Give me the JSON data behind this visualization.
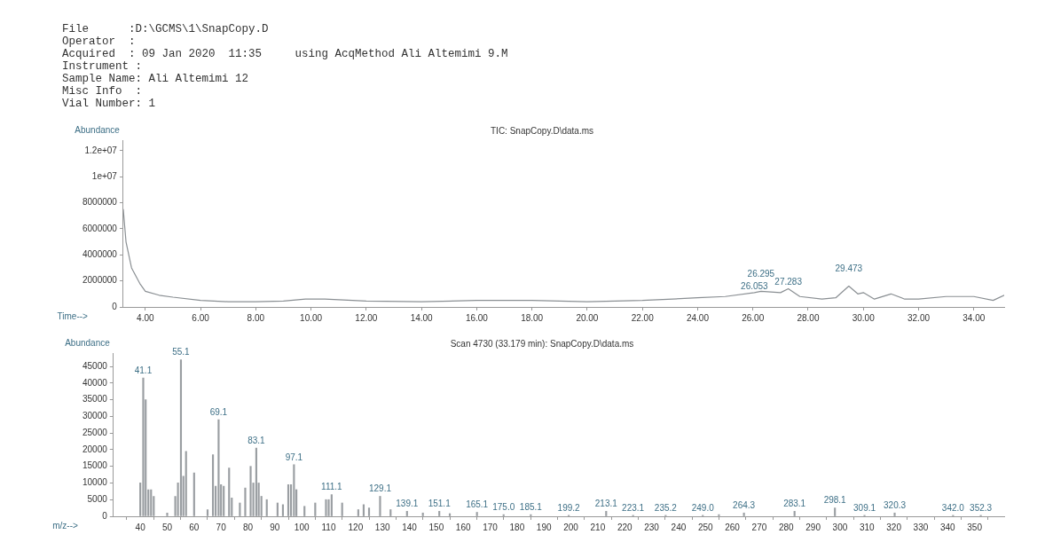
{
  "chart_data": [
    {
      "type": "line",
      "title": "TIC: SnapCopy.D\\data.ms",
      "xlabel": "Time-->",
      "ylabel": "Abundance",
      "color": "#8a8f93",
      "annotations": [
        "File      :D:\\GCMS\\1\\SnapCopy.D",
        "Operator  :",
        "Acquired  : 09 Jan 2020  11:35     using AcqMethod Ali Altemimi 9.M",
        "Instrument :",
        "Sample Name: Ali Altemimi 12",
        "Misc Info  :",
        "Vial Number: 1",
        {
          "text": "26.053",
          "x": 26.053,
          "y": 1100000
        },
        {
          "text": "26.295",
          "x": 26.295,
          "y": 1200000
        },
        {
          "text": "27.283",
          "x": 27.283,
          "y": 1400000
        },
        {
          "text": "29.473",
          "x": 29.473,
          "y": 1600000
        }
      ],
      "x": [
        3.2,
        3.3,
        3.5,
        3.8,
        4.0,
        4.5,
        5.0,
        6.0,
        7.0,
        8.0,
        9.0,
        9.8,
        10.5,
        12.0,
        14.0,
        16.0,
        18.0,
        20.0,
        22.0,
        24.0,
        25.0,
        26.053,
        26.295,
        27.0,
        27.283,
        27.7,
        28.5,
        29.0,
        29.473,
        29.8,
        30.0,
        30.4,
        31.0,
        31.5,
        32.0,
        33.0,
        34.0,
        34.7,
        35.1
      ],
      "values": [
        7500000,
        5000000,
        3000000,
        1800000,
        1200000,
        900000,
        750000,
        500000,
        400000,
        400000,
        450000,
        600000,
        600000,
        450000,
        400000,
        500000,
        500000,
        400000,
        500000,
        700000,
        800000,
        1100000,
        1200000,
        1100000,
        1400000,
        800000,
        600000,
        700000,
        1600000,
        1000000,
        1100000,
        600000,
        1000000,
        600000,
        600000,
        800000,
        800000,
        500000,
        900000
      ],
      "xlim": [
        3.2,
        35.1
      ],
      "xticks": [
        {
          "value": 4,
          "label": "4.00"
        },
        {
          "value": 6,
          "label": "6.00"
        },
        {
          "value": 8,
          "label": "8.00"
        },
        {
          "value": 10,
          "label": "10.00"
        },
        {
          "value": 12,
          "label": "12.00"
        },
        {
          "value": 14,
          "label": "14.00"
        },
        {
          "value": 16,
          "label": "16.00"
        },
        {
          "value": 18,
          "label": "18.00"
        },
        {
          "value": 20,
          "label": "20.00"
        },
        {
          "value": 22,
          "label": "22.00"
        },
        {
          "value": 24,
          "label": "24.00"
        },
        {
          "value": 26,
          "label": "26.00"
        },
        {
          "value": 28,
          "label": "28.00"
        },
        {
          "value": 30,
          "label": "30.00"
        },
        {
          "value": 32,
          "label": "32.00"
        },
        {
          "value": 34,
          "label": "34.00"
        }
      ],
      "ylim": [
        0,
        12800000
      ],
      "yticks": [
        0,
        2000000,
        4000000,
        6000000,
        8000000,
        {
          "value": 10000000,
          "label": "1e+07"
        },
        {
          "value": 12000000,
          "label": "1.2e+07"
        }
      ],
      "marker": "none",
      "line_style": "solid",
      "grid": false,
      "legend": false
    },
    {
      "type": "bar",
      "title": "Scan 4730 (33.179 min): SnapCopy.D\\data.ms",
      "xlabel": "m/z-->",
      "ylabel": "Abundance",
      "color": "#9a9ea2",
      "x": [
        40,
        41.1,
        42,
        43,
        44,
        45,
        50,
        53,
        54,
        55.1,
        56,
        57,
        60,
        65,
        67,
        68,
        69.1,
        70,
        71,
        73,
        74,
        77,
        79,
        81,
        82,
        83.1,
        84,
        85,
        87,
        91,
        93,
        95,
        96,
        97.1,
        98,
        101,
        105,
        109,
        110,
        111.1,
        115,
        121,
        123,
        125,
        129.1,
        133,
        139.1,
        145,
        151.1,
        155,
        165.1,
        175.0,
        185.1,
        199.2,
        213.1,
        223.1,
        235.2,
        249.0,
        255,
        264.3,
        283.1,
        298.1,
        309.1,
        320.3,
        342.0,
        352.3
      ],
      "values": [
        10000,
        41500,
        35000,
        8000,
        8000,
        6000,
        1000,
        6000,
        10000,
        47000,
        12000,
        19500,
        13000,
        2000,
        18500,
        9000,
        29000,
        9500,
        9000,
        14500,
        5500,
        4000,
        8500,
        15000,
        10000,
        20500,
        10000,
        6000,
        5000,
        4000,
        3500,
        9500,
        9500,
        15500,
        8000,
        3000,
        4000,
        5000,
        5000,
        6500,
        4000,
        2000,
        3500,
        2500,
        6000,
        2000,
        1500,
        1000,
        1500,
        800,
        1200,
        500,
        500,
        300,
        1500,
        300,
        300,
        300,
        500,
        1000,
        1500,
        2500,
        300,
        1000,
        300,
        300
      ],
      "annotations": [
        {
          "text": "41.1",
          "x": 41.1,
          "y": 41500
        },
        {
          "text": "55.1",
          "x": 55.1,
          "y": 47000
        },
        {
          "text": "69.1",
          "x": 69.1,
          "y": 29000
        },
        {
          "text": "83.1",
          "x": 83.1,
          "y": 20500
        },
        {
          "text": "97.1",
          "x": 97.1,
          "y": 15500
        },
        {
          "text": "111.1",
          "x": 111.1,
          "y": 6500
        },
        {
          "text": "129.1",
          "x": 129.1,
          "y": 6000
        },
        {
          "text": "139.1",
          "x": 139.1,
          "y": 1500
        },
        {
          "text": "151.1",
          "x": 151.1,
          "y": 1500
        },
        {
          "text": "165.1",
          "x": 165.1,
          "y": 1200
        },
        {
          "text": "175.0",
          "x": 175.0,
          "y": 500
        },
        {
          "text": "185.1",
          "x": 185.1,
          "y": 500
        },
        {
          "text": "199.2",
          "x": 199.2,
          "y": 300
        },
        {
          "text": "213.1",
          "x": 213.1,
          "y": 1500
        },
        {
          "text": "223.1",
          "x": 223.1,
          "y": 300
        },
        {
          "text": "235.2",
          "x": 235.2,
          "y": 300
        },
        {
          "text": "249.0",
          "x": 249.0,
          "y": 300
        },
        {
          "text": "264.3",
          "x": 264.3,
          "y": 1000
        },
        {
          "text": "283.1",
          "x": 283.1,
          "y": 1500
        },
        {
          "text": "298.1",
          "x": 298.1,
          "y": 2500
        },
        {
          "text": "309.1",
          "x": 309.1,
          "y": 300
        },
        {
          "text": "320.3",
          "x": 320.3,
          "y": 1000
        },
        {
          "text": "342.0",
          "x": 342.0,
          "y": 300
        },
        {
          "text": "352.3",
          "x": 352.3,
          "y": 300
        }
      ],
      "xlim": [
        30,
        361
      ],
      "xticks": [
        40,
        50,
        60,
        70,
        80,
        90,
        100,
        110,
        120,
        130,
        140,
        150,
        160,
        170,
        180,
        190,
        200,
        210,
        220,
        230,
        240,
        250,
        260,
        270,
        280,
        290,
        300,
        310,
        320,
        330,
        340,
        350
      ],
      "ylim": [
        0,
        49000
      ],
      "yticks": [
        0,
        5000,
        10000,
        15000,
        20000,
        25000,
        30000,
        35000,
        40000,
        45000
      ],
      "grid": false,
      "legend": false
    }
  ]
}
